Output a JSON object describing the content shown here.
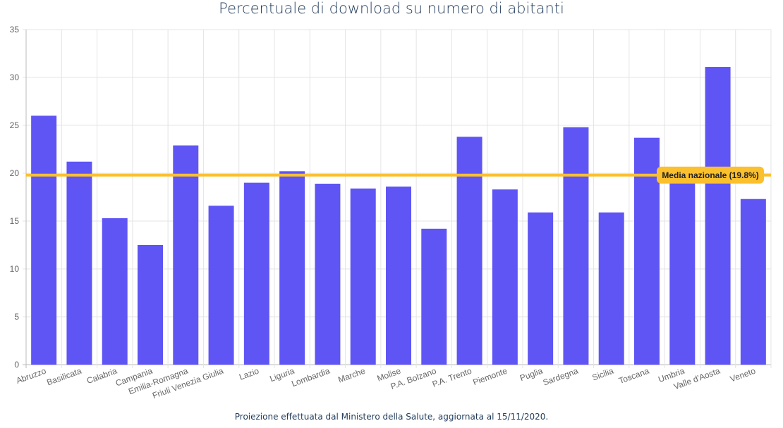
{
  "chart_data": {
    "type": "bar",
    "title": "Percentuale di download su numero di abitanti",
    "footer": "Proiezione effettuata dal Ministero della Salute, aggiornata al 15/11/2020.",
    "categories": [
      "Abruzzo",
      "Basilicata",
      "Calabria",
      "Campania",
      "Emilia-Romagna",
      "Friuli Venezia Giulia",
      "Lazio",
      "Liguria",
      "Lombardia",
      "Marche",
      "Molise",
      "P.A. Bolzano",
      "P.A. Trento",
      "Piemonte",
      "Puglia",
      "Sardegna",
      "Sicilia",
      "Toscana",
      "Umbria",
      "Valle d'Aosta",
      "Veneto"
    ],
    "values": [
      26.0,
      21.2,
      15.3,
      12.5,
      22.9,
      16.6,
      19.0,
      20.2,
      18.9,
      18.4,
      18.6,
      14.2,
      23.8,
      18.3,
      15.9,
      24.8,
      15.9,
      23.7,
      19.2,
      31.1,
      17.3
    ],
    "ylim": [
      0,
      35
    ],
    "yticks": [
      0,
      5,
      10,
      15,
      20,
      25,
      30,
      35
    ],
    "grid": true,
    "bar_color": "#5f55f5",
    "reference_line": {
      "value": 19.8,
      "label": "Media nazionale (19.8%)",
      "color": "#fbc02d"
    }
  }
}
